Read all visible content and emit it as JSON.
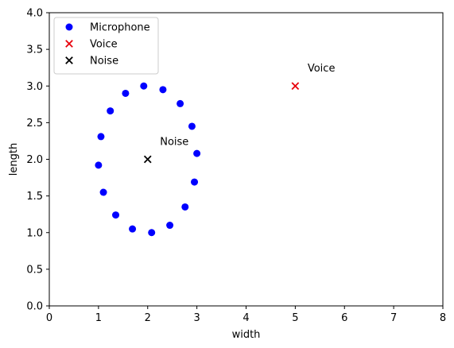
{
  "chart_data": {
    "type": "scatter",
    "title": "",
    "xlabel": "width",
    "ylabel": "length",
    "xlim": [
      0,
      8
    ],
    "ylim": [
      0,
      4
    ],
    "x_ticks": [
      "0",
      "1",
      "2",
      "3",
      "4",
      "5",
      "6",
      "7",
      "8"
    ],
    "y_ticks": [
      "0.0",
      "0.5",
      "1.0",
      "1.5",
      "2.0",
      "2.5",
      "3.0",
      "3.5",
      "4.0"
    ],
    "grid": false,
    "legend_position": "top-left",
    "series": [
      {
        "name": "Microphone",
        "marker": "circle",
        "color": "#0000ff",
        "points": [
          [
            3.0,
            2.08
          ],
          [
            2.95,
            1.69
          ],
          [
            2.76,
            1.35
          ],
          [
            2.45,
            1.1
          ],
          [
            2.08,
            1.0
          ],
          [
            1.69,
            1.05
          ],
          [
            1.35,
            1.24
          ],
          [
            1.1,
            1.55
          ],
          [
            1.0,
            1.92
          ],
          [
            1.05,
            2.31
          ],
          [
            1.24,
            2.66
          ],
          [
            1.55,
            2.9
          ],
          [
            1.92,
            3.0
          ],
          [
            2.31,
            2.95
          ],
          [
            2.66,
            2.76
          ],
          [
            2.9,
            2.45
          ]
        ]
      },
      {
        "name": "Voice",
        "marker": "x",
        "color": "#e8000b",
        "points": [
          [
            5.0,
            3.0
          ]
        ]
      },
      {
        "name": "Noise",
        "marker": "x",
        "color": "#000000",
        "points": [
          [
            2.0,
            2.0
          ]
        ]
      }
    ],
    "annotations": [
      {
        "text": "Voice",
        "x": 5.25,
        "y": 3.25
      },
      {
        "text": "Noise",
        "x": 2.25,
        "y": 2.25
      }
    ]
  }
}
